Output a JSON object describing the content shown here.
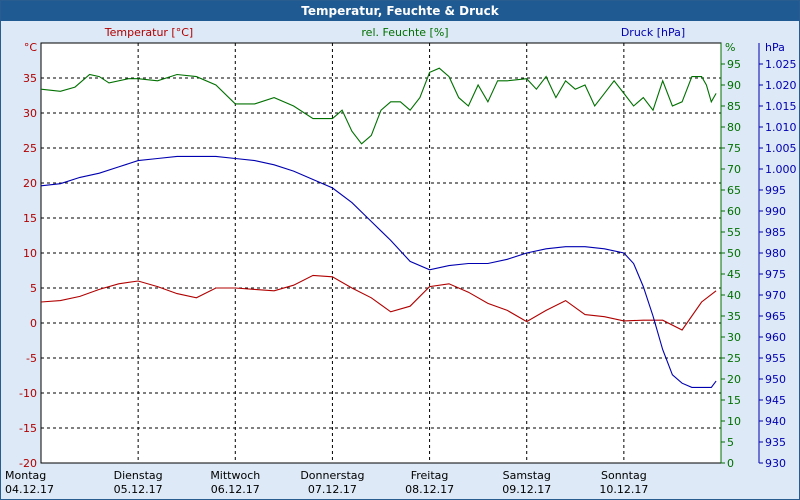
{
  "window": {
    "title": "Temperatur, Feuchte & Druck"
  },
  "chart_data": {
    "type": "line",
    "title": "Temperatur, Feuchte & Druck",
    "x_range": [
      "04.12.17",
      "10.12.17 + 1 Tag"
    ],
    "x_ticks": [
      {
        "day": "Montag",
        "date": "04.12.17"
      },
      {
        "day": "Dienstag",
        "date": "05.12.17"
      },
      {
        "day": "Mittwoch",
        "date": "06.12.17"
      },
      {
        "day": "Donnerstag",
        "date": "07.12.17"
      },
      {
        "day": "Freitag",
        "date": "08.12.17"
      },
      {
        "day": "Samstag",
        "date": "09.12.17"
      },
      {
        "day": "Sonntag",
        "date": "10.12.17"
      }
    ],
    "grid": true,
    "axes": {
      "temperature": {
        "label": "Temperatur [°C]",
        "unit": "°C",
        "ylim": [
          -20,
          40
        ],
        "ticks": [
          35,
          30,
          25,
          20,
          15,
          10,
          5,
          0,
          -5,
          -10,
          -15,
          -20
        ],
        "color": "#b00000"
      },
      "humidity": {
        "label": "rel. Feuchte [%]",
        "unit": "%",
        "ylim": [
          0,
          100
        ],
        "ticks": [
          95,
          90,
          85,
          80,
          75,
          70,
          65,
          60,
          55,
          50,
          45,
          40,
          35,
          30,
          25,
          20,
          15,
          10,
          5,
          0
        ],
        "color": "#007000"
      },
      "pressure": {
        "label": "Druck [hPa]",
        "unit": "hPa",
        "ylim": [
          930,
          1030
        ],
        "ticks": [
          "1.025",
          "1.020",
          "1.015",
          "1.010",
          "1.005",
          "1.000",
          "995",
          "990",
          "985",
          "980",
          "975",
          "970",
          "965",
          "960",
          "955",
          "950",
          "945",
          "940",
          "935",
          "930"
        ],
        "color": "#0000b0"
      }
    },
    "series": [
      {
        "name": "Temperatur [°C]",
        "axis": "temperature",
        "color": "#b00000",
        "x": [
          0,
          0.2,
          0.4,
          0.6,
          0.8,
          1.0,
          1.2,
          1.4,
          1.6,
          1.8,
          2.0,
          2.2,
          2.4,
          2.6,
          2.8,
          3.0,
          3.2,
          3.4,
          3.6,
          3.8,
          4.0,
          4.2,
          4.4,
          4.6,
          4.8,
          5.0,
          5.2,
          5.4,
          5.6,
          5.8,
          6.0,
          6.2,
          6.4,
          6.6,
          6.8,
          6.95
        ],
        "values": [
          3,
          3.2,
          3.8,
          4.8,
          5.6,
          6,
          5.2,
          4.2,
          3.6,
          5,
          5,
          4.8,
          4.6,
          5.4,
          6.8,
          6.6,
          5,
          3.6,
          1.6,
          2.4,
          5.2,
          5.6,
          4.4,
          2.8,
          1.8,
          0.2,
          1.8,
          3.2,
          1.2,
          0.9,
          0.3,
          0.4,
          0.4,
          -1,
          3,
          4.6
        ]
      },
      {
        "name": "rel. Feuchte [%]",
        "axis": "humidity",
        "color": "#007000",
        "x": [
          0,
          0.2,
          0.35,
          0.5,
          0.6,
          0.7,
          0.9,
          1.0,
          1.2,
          1.4,
          1.6,
          1.8,
          2.0,
          2.2,
          2.4,
          2.6,
          2.8,
          3.0,
          3.05,
          3.1,
          3.2,
          3.3,
          3.4,
          3.5,
          3.6,
          3.7,
          3.8,
          3.9,
          4.0,
          4.1,
          4.2,
          4.3,
          4.4,
          4.5,
          4.6,
          4.7,
          4.8,
          5.0,
          5.1,
          5.2,
          5.3,
          5.4,
          5.5,
          5.6,
          5.7,
          5.8,
          5.9,
          6.0,
          6.1,
          6.2,
          6.3,
          6.4,
          6.5,
          6.6,
          6.7,
          6.8,
          6.85,
          6.9,
          6.95
        ],
        "values": [
          89,
          88.5,
          89.5,
          92.5,
          92,
          90.5,
          91.5,
          91.5,
          91,
          92.5,
          92,
          90,
          85.5,
          85.5,
          87,
          85,
          82,
          82,
          83,
          84,
          79,
          76,
          78,
          84,
          86,
          86,
          84,
          87,
          93,
          94,
          92,
          87,
          85,
          90,
          86,
          91,
          91,
          91.5,
          89,
          92,
          87,
          91,
          89,
          90,
          85,
          88,
          91,
          88,
          85,
          87,
          84,
          91,
          85,
          86,
          92,
          92,
          90,
          86,
          88
        ]
      },
      {
        "name": "Druck [hPa]",
        "axis": "pressure",
        "color": "#0000b0",
        "x": [
          0,
          0.2,
          0.4,
          0.6,
          0.8,
          1.0,
          1.2,
          1.4,
          1.6,
          1.8,
          2.0,
          2.2,
          2.4,
          2.6,
          2.8,
          3.0,
          3.2,
          3.4,
          3.6,
          3.8,
          4.0,
          4.2,
          4.4,
          4.6,
          4.8,
          5.0,
          5.2,
          5.4,
          5.6,
          5.8,
          6.0,
          6.1,
          6.2,
          6.3,
          6.4,
          6.5,
          6.6,
          6.7,
          6.8,
          6.9,
          6.95
        ],
        "values": [
          996,
          996.5,
          998,
          999,
          1000.5,
          1002,
          1002.5,
          1003,
          1003,
          1003,
          1002.5,
          1002,
          1001,
          999.5,
          997.5,
          995.5,
          992,
          987.5,
          983,
          978,
          976,
          977,
          977.5,
          977.5,
          978.5,
          980,
          981,
          981.5,
          981.5,
          981,
          980,
          977.5,
          972,
          965,
          957,
          951,
          949,
          948,
          948,
          948,
          949.5
        ]
      }
    ]
  }
}
